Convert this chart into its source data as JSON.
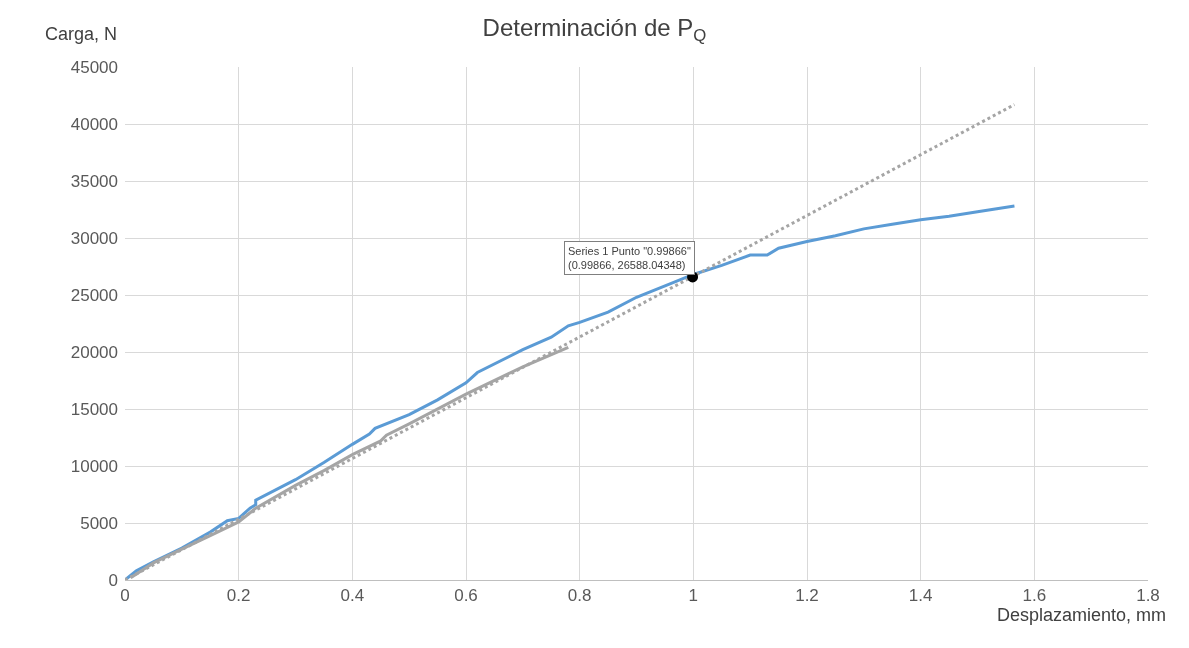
{
  "chart_data": {
    "type": "line",
    "title": "Determinación de P$_{Q}$",
    "xlabel": "Desplazamiento, mm",
    "ylabel": "Carga, N",
    "xlim": [
      0,
      1.8
    ],
    "xticks": [
      0,
      0.2,
      0.4,
      0.6,
      0.8,
      1,
      1.2,
      1.4,
      1.6,
      1.8
    ],
    "ylim": [
      0,
      45000
    ],
    "yticks": [
      0,
      5000,
      10000,
      15000,
      20000,
      25000,
      30000,
      35000,
      40000,
      45000
    ],
    "grid": true,
    "marker": "none",
    "series": [
      {
        "color": "#5b9bd5",
        "x": [
          0,
          0.02,
          0.05,
          0.1,
          0.15,
          0.18,
          0.2,
          0.22,
          0.23,
          0.23,
          0.3,
          0.35,
          0.4,
          0.43,
          0.44,
          0.5,
          0.55,
          0.6,
          0.62,
          0.7,
          0.75,
          0.78,
          0.8,
          0.85,
          0.9,
          0.96,
          1.0,
          1.05,
          1.1,
          1.13,
          1.15,
          1.2,
          1.25,
          1.3,
          1.35,
          1.4,
          1.45,
          1.5,
          1.565
        ],
        "values": [
          0,
          800,
          1600,
          2800,
          4200,
          5200,
          5400,
          6300,
          6600,
          7000,
          8800,
          10300,
          11900,
          12800,
          13300,
          14500,
          15800,
          17300,
          18200,
          20200,
          21300,
          22300,
          22600,
          23500,
          24800,
          26000,
          26800,
          27600,
          28500,
          28500,
          29100,
          29700,
          30200,
          30800,
          31200,
          31600,
          31900,
          32300,
          32800
        ]
      },
      {
        "color": "#a5a5a5",
        "x": [
          0.01,
          0.05,
          0.1,
          0.15,
          0.2,
          0.23,
          0.3,
          0.35,
          0.4,
          0.45,
          0.46,
          0.5,
          0.6,
          0.7,
          0.78
        ],
        "values": [
          200,
          1500,
          2700,
          3900,
          5100,
          6300,
          8300,
          9600,
          11000,
          12200,
          12700,
          13700,
          16300,
          18700,
          20400
        ]
      },
      {
        "color": "#a5a5a5",
        "line_style": "dotted",
        "x": [
          0,
          1.565
        ],
        "values": [
          0,
          41700
        ]
      },
      {
        "type": "scatter",
        "marker": "circle",
        "color": "#000000",
        "x": [
          0.99866
        ],
        "values": [
          26588.04348
        ]
      }
    ],
    "annotations": [
      {
        "text": "Series 1 Punto \"0.99866\"\n(0.99866, 26588.04348)",
        "x": 0.99866,
        "y": 26588.04348
      }
    ]
  }
}
